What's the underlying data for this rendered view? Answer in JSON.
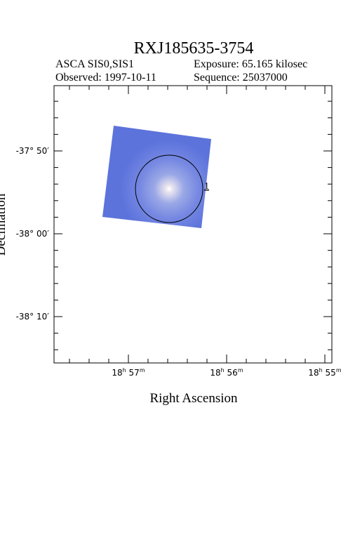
{
  "title": "RXJ185635-3754",
  "info": {
    "instrument": "ASCA SIS0,SIS1",
    "exposure": "Exposure: 65.165 kilosec",
    "observed": "Observed: 1997-10-11",
    "sequence": "Sequence: 25037000"
  },
  "x_axis_label": "Right Ascension",
  "y_axis_label": "Declination",
  "y_ticks": [
    "-37° 50′",
    "-38° 00′",
    "-38° 10′"
  ],
  "x_ticks": [
    [
      "18",
      "h",
      " 57",
      "m"
    ],
    [
      "18",
      "h",
      " 56",
      "m"
    ],
    [
      "18",
      "h",
      " 55",
      "m"
    ]
  ],
  "source_label": "1"
}
